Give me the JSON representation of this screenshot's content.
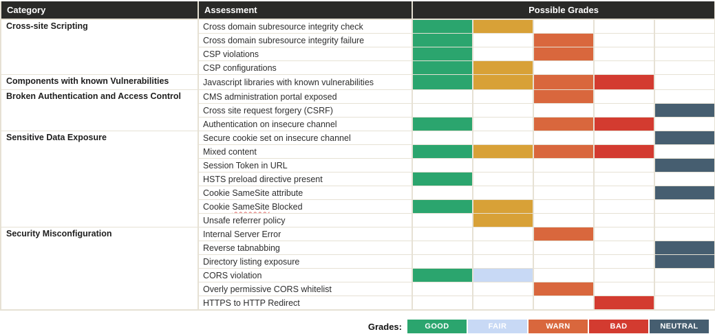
{
  "header": {
    "category": "Category",
    "assessment": "Assessment",
    "possible_grades": "Possible Grades"
  },
  "colors": {
    "header_bg": "#2a2a28",
    "grid": "#e6e1d4",
    "squiggle": "#e06666",
    "green": "#2ba56e",
    "gold": "#d8a137",
    "orange": "#d9673d",
    "red": "#d33b30",
    "blue": "#c8d9f5",
    "slate": "#465e70"
  },
  "groups": [
    {
      "category": "Cross-site Scripting",
      "rows": [
        {
          "assessment": "Cross domain subresource integrity check",
          "grades": [
            "green",
            "gold",
            "",
            "",
            ""
          ]
        },
        {
          "assessment": "Cross domain subresource integrity failure",
          "grades": [
            "green",
            "",
            "orange",
            "",
            ""
          ]
        },
        {
          "assessment": "CSP violations",
          "grades": [
            "green",
            "",
            "orange",
            "",
            ""
          ]
        },
        {
          "assessment": "CSP configurations",
          "grades": [
            "green",
            "gold",
            "",
            "",
            ""
          ]
        }
      ]
    },
    {
      "category": "Components with known Vulnerabilities",
      "rows": [
        {
          "assessment": "Javascript libraries with known vulnerabilities",
          "grades": [
            "green",
            "gold",
            "orange",
            "red",
            ""
          ]
        }
      ]
    },
    {
      "category": "Broken Authentication and Access Control",
      "rows": [
        {
          "assessment": "CMS administration portal exposed",
          "grades": [
            "",
            "",
            "orange",
            "",
            ""
          ]
        },
        {
          "assessment": "Cross site request forgery (CSRF)",
          "grades": [
            "",
            "",
            "",
            "",
            "slate"
          ]
        },
        {
          "assessment": "Authentication on insecure channel",
          "grades": [
            "green",
            "",
            "orange",
            "red",
            ""
          ]
        }
      ]
    },
    {
      "category": "Sensitive Data Exposure",
      "rows": [
        {
          "assessment": "Secure cookie set on insecure channel",
          "grades": [
            "",
            "",
            "",
            "",
            "slate"
          ]
        },
        {
          "assessment": "Mixed content",
          "grades": [
            "green",
            "gold",
            "orange",
            "red",
            ""
          ]
        },
        {
          "assessment": "Session Token in URL",
          "grades": [
            "",
            "",
            "",
            "",
            "slate"
          ]
        },
        {
          "assessment": "HSTS preload directive present",
          "grades": [
            "green",
            "",
            "",
            "",
            ""
          ]
        },
        {
          "assessment": "Cookie SameSite attribute",
          "grades": [
            "",
            "",
            "",
            "",
            "slate"
          ]
        },
        {
          "assessment": "Cookie SameSite Blocked",
          "assessment_parts": {
            "pre": "Cookie ",
            "squiggle": "SameSite",
            "post": " Blocked"
          },
          "grades": [
            "green",
            "gold",
            "",
            "",
            ""
          ]
        },
        {
          "assessment": "Unsafe referrer policy",
          "grades": [
            "",
            "gold",
            "",
            "",
            ""
          ]
        }
      ]
    },
    {
      "category": "Security Misconfiguration",
      "rows": [
        {
          "assessment": "Internal Server Error",
          "grades": [
            "",
            "",
            "orange",
            "",
            ""
          ]
        },
        {
          "assessment": "Reverse tabnabbing",
          "grades": [
            "",
            "",
            "",
            "",
            "slate"
          ]
        },
        {
          "assessment": "Directory listing exposure",
          "grades": [
            "",
            "",
            "",
            "",
            "slate"
          ]
        },
        {
          "assessment": "CORS violation",
          "grades": [
            "green",
            "blue",
            "",
            "",
            ""
          ]
        },
        {
          "assessment": "Overly permissive CORS whitelist",
          "grades": [
            "",
            "",
            "orange",
            "",
            ""
          ]
        },
        {
          "assessment": "HTTPS to HTTP Redirect",
          "grades": [
            "",
            "",
            "",
            "red",
            ""
          ]
        }
      ]
    }
  ],
  "legend": {
    "label": "Grades:",
    "items": [
      {
        "label": "GOOD",
        "color": "green"
      },
      {
        "label": "FAIR",
        "color": "blue"
      },
      {
        "label": "WARN",
        "color": "orange"
      },
      {
        "label": "BAD",
        "color": "red"
      },
      {
        "label": "NEUTRAL",
        "color": "slate"
      }
    ]
  }
}
